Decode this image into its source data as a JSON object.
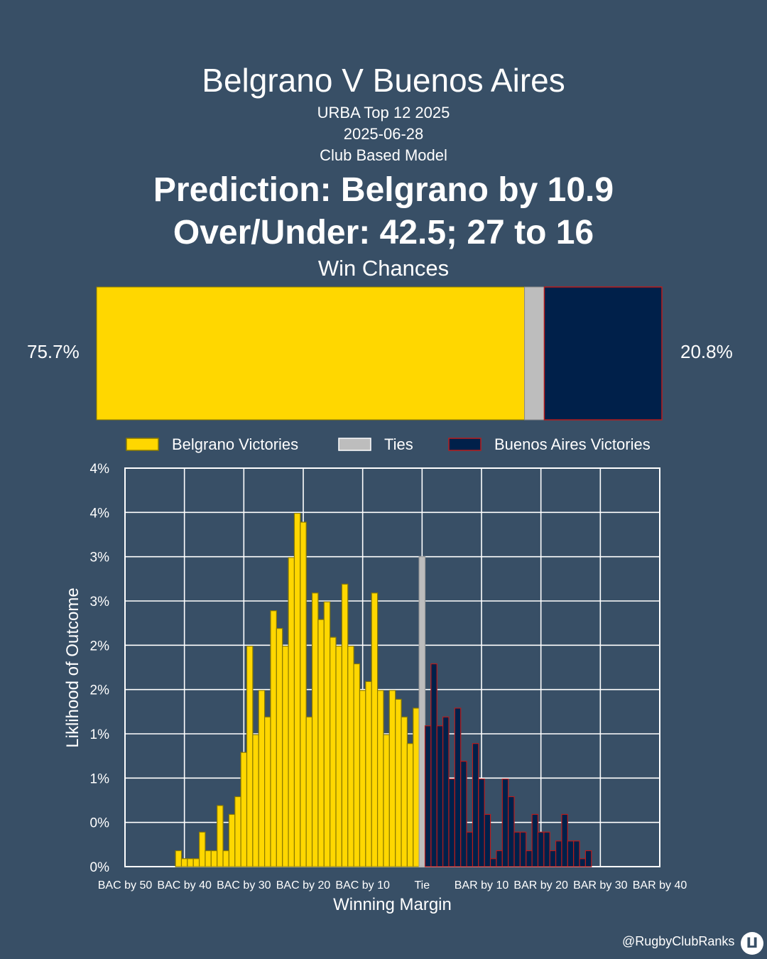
{
  "header": {
    "title": "Belgrano V Buenos Aires",
    "competition": "URBA Top 12 2025",
    "date": "2025-06-28",
    "model": "Club Based Model",
    "prediction": "Prediction: Belgrano by 10.9",
    "over_under": "Over/Under: 42.5; 27 to 16"
  },
  "win_chances": {
    "title": "Win Chances",
    "home_pct": 75.7,
    "tie_pct": 3.5,
    "away_pct": 20.8,
    "home_label": "75.7%",
    "away_label": "20.8%"
  },
  "colors": {
    "background": "#384f66",
    "home": "#ffd700",
    "home_edge": "#8a7a00",
    "tie": "#bdbdbd",
    "away": "#00204a",
    "away_edge": "#b71c1c"
  },
  "legend": [
    {
      "label": "Belgrano Victories",
      "color": "#ffd700",
      "edge": "#8a7a00"
    },
    {
      "label": "Ties",
      "color": "#bdbdbd",
      "edge": "#ffffff"
    },
    {
      "label": "Buenos Aires Victories",
      "color": "#00204a",
      "edge": "#b71c1c"
    }
  ],
  "footer": {
    "handle": "@RugbyClubRanks"
  },
  "chart_data": {
    "type": "bar",
    "xlabel": "Winning Margin",
    "ylabel": "Liklihood of Outcome",
    "xlim": [
      -50,
      40
    ],
    "ylim": [
      0,
      4.5
    ],
    "grid": true,
    "x_ticks": [
      {
        "value": -50,
        "label": "BAC by 50"
      },
      {
        "value": -40,
        "label": "BAC by 40"
      },
      {
        "value": -30,
        "label": "BAC by 30"
      },
      {
        "value": -20,
        "label": "BAC by 20"
      },
      {
        "value": -10,
        "label": "BAC by 10"
      },
      {
        "value": 0,
        "label": "Tie"
      },
      {
        "value": 10,
        "label": "BAR by 10"
      },
      {
        "value": 20,
        "label": "BAR by 20"
      },
      {
        "value": 30,
        "label": "BAR by 30"
      },
      {
        "value": 40,
        "label": "BAR by 40"
      }
    ],
    "y_ticks": [
      {
        "value": 0,
        "label": "0%"
      },
      {
        "value": 0.5,
        "label": "0%"
      },
      {
        "value": 1.0,
        "label": "1%"
      },
      {
        "value": 1.5,
        "label": "1%"
      },
      {
        "value": 2.0,
        "label": "2%"
      },
      {
        "value": 2.5,
        "label": "2%"
      },
      {
        "value": 3.0,
        "label": "3%"
      },
      {
        "value": 3.5,
        "label": "3%"
      },
      {
        "value": 4.0,
        "label": "4%"
      },
      {
        "value": 4.5,
        "label": "4%"
      }
    ],
    "series": [
      {
        "name": "Belgrano Victories",
        "x": [
          -41,
          -40,
          -39,
          -38,
          -37,
          -36,
          -35,
          -34,
          -33,
          -32,
          -31,
          -30,
          -29,
          -28,
          -27,
          -26,
          -25,
          -24,
          -23,
          -22,
          -21,
          -20,
          -19,
          -18,
          -17,
          -16,
          -15,
          -14,
          -13,
          -12,
          -11,
          -10,
          -9,
          -8,
          -7,
          -6,
          -5,
          -4,
          -3,
          -2,
          -1
        ],
        "values": [
          0.18,
          0.09,
          0.09,
          0.09,
          0.39,
          0.18,
          0.18,
          0.69,
          0.18,
          0.59,
          0.79,
          1.29,
          2.49,
          1.49,
          1.99,
          1.69,
          2.89,
          2.69,
          2.49,
          3.49,
          3.99,
          3.89,
          1.69,
          3.09,
          2.79,
          2.99,
          2.59,
          2.49,
          3.19,
          2.49,
          2.29,
          1.99,
          2.09,
          3.09,
          1.99,
          1.49,
          1.99,
          1.89,
          1.69,
          1.39,
          1.79
        ]
      },
      {
        "name": "Ties",
        "x": [
          0
        ],
        "values": [
          3.5
        ]
      },
      {
        "name": "Buenos Aires Victories",
        "x": [
          1,
          2,
          3,
          4,
          5,
          6,
          7,
          8,
          9,
          10,
          11,
          12,
          13,
          14,
          15,
          16,
          17,
          18,
          19,
          20,
          21,
          22,
          23,
          24,
          25,
          26,
          27,
          28
        ],
        "values": [
          1.59,
          2.29,
          1.59,
          1.69,
          0.99,
          1.79,
          1.19,
          0.39,
          1.39,
          0.99,
          0.59,
          0.09,
          0.18,
          0.99,
          0.79,
          0.39,
          0.39,
          0.18,
          0.59,
          0.39,
          0.39,
          0.18,
          0.29,
          0.59,
          0.29,
          0.29,
          0.09,
          0.18
        ]
      }
    ]
  }
}
